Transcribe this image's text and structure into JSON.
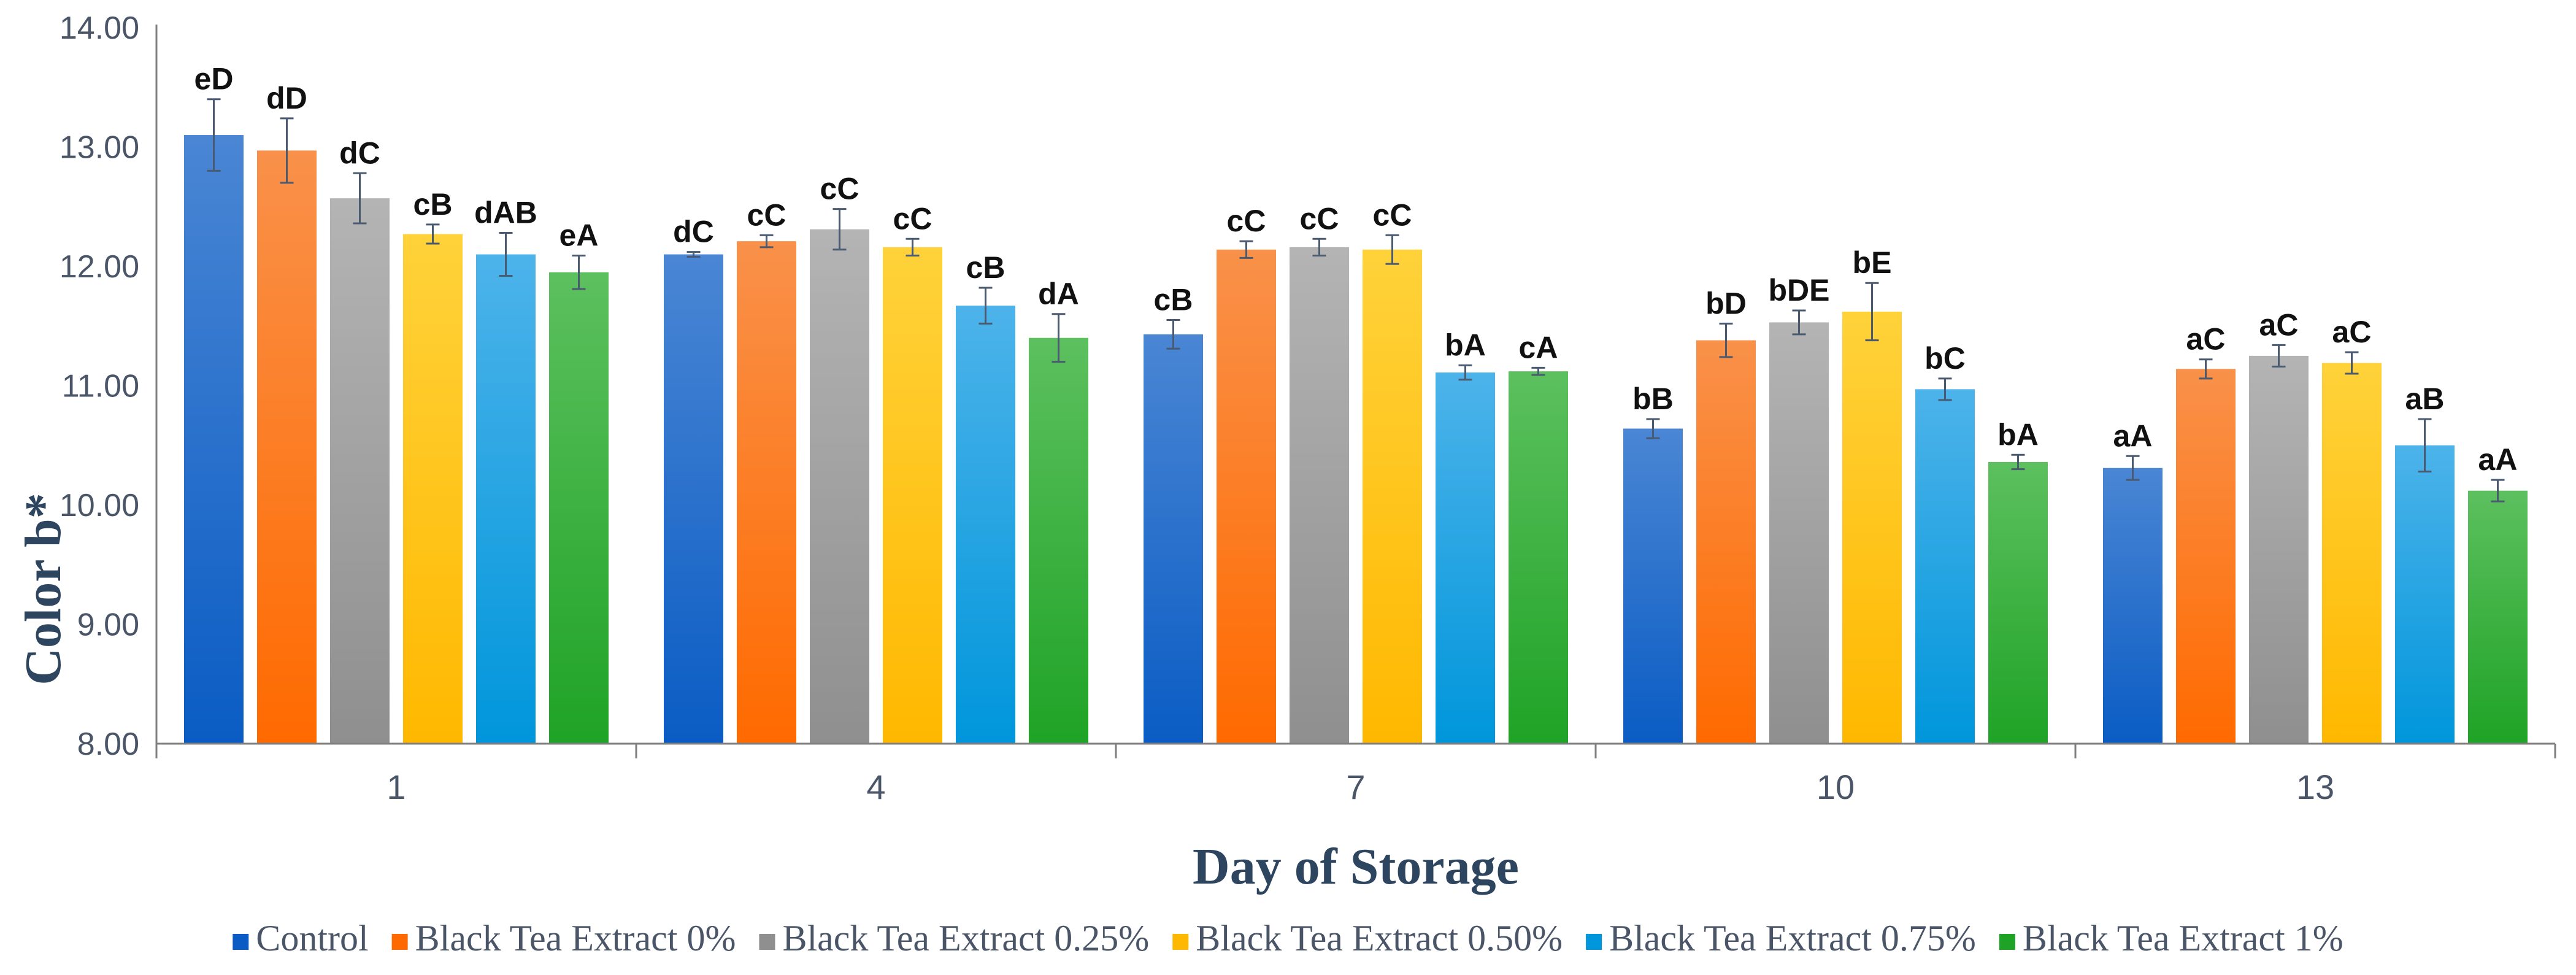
{
  "chart_data": {
    "type": "bar",
    "title": "",
    "xlabel": "Day of Storage",
    "ylabel": "Color b*",
    "ylim": [
      8.0,
      14.0
    ],
    "ytick_step": 1.0,
    "ytick_labels": [
      "8.00",
      "9.00",
      "10.00",
      "11.00",
      "12.00",
      "13.00",
      "14.00"
    ],
    "categories": [
      "1",
      "4",
      "7",
      "10",
      "13"
    ],
    "legend_position": "bottom",
    "series": [
      {
        "name": "Control",
        "color_top": "#4a86d4",
        "color_bottom": "#0a5cc4",
        "values": [
          13.1,
          12.1,
          11.43,
          10.64,
          10.31
        ],
        "errors": [
          0.3,
          0.02,
          0.12,
          0.08,
          0.1
        ],
        "labels": [
          "eD",
          "dC",
          "cB",
          "bB",
          "aA"
        ]
      },
      {
        "name": "Black Tea Extract 0%",
        "color_top": "#f9914a",
        "color_bottom": "#ff6a00",
        "values": [
          12.97,
          12.21,
          12.14,
          11.38,
          11.14
        ],
        "errors": [
          0.27,
          0.05,
          0.07,
          0.14,
          0.08
        ],
        "labels": [
          "dD",
          "cC",
          "cC",
          "bD",
          "aC"
        ]
      },
      {
        "name": "Black Tea Extract 0.25%",
        "color_top": "#b4b4b4",
        "color_bottom": "#8f8f8f",
        "values": [
          12.57,
          12.31,
          12.16,
          11.53,
          11.25
        ],
        "errors": [
          0.21,
          0.17,
          0.07,
          0.1,
          0.09
        ],
        "labels": [
          "dC",
          "cC",
          "cC",
          "bDE",
          "aC"
        ]
      },
      {
        "name": "Black Tea Extract 0.50%",
        "color_top": "#ffd23a",
        "color_bottom": "#ffb800",
        "values": [
          12.27,
          12.16,
          12.14,
          11.62,
          11.19
        ],
        "errors": [
          0.08,
          0.07,
          0.12,
          0.24,
          0.09
        ],
        "labels": [
          "cB",
          "cC",
          "cC",
          "bE",
          "aC"
        ]
      },
      {
        "name": "Black Tea Extract 0.75%",
        "color_top": "#4db3ea",
        "color_bottom": "#0096db",
        "values": [
          12.1,
          11.67,
          11.11,
          10.97,
          10.5
        ],
        "errors": [
          0.18,
          0.15,
          0.06,
          0.09,
          0.22
        ],
        "labels": [
          "dAB",
          "cB",
          "bA",
          "bC",
          "aB"
        ]
      },
      {
        "name": "Black Tea Extract 1%",
        "color_top": "#5cc05e",
        "color_bottom": "#1fa326",
        "values": [
          11.95,
          11.4,
          11.12,
          10.36,
          10.12
        ],
        "errors": [
          0.14,
          0.2,
          0.03,
          0.06,
          0.09
        ],
        "labels": [
          "eA",
          "dA",
          "cA",
          "bA",
          "aA"
        ]
      }
    ]
  }
}
